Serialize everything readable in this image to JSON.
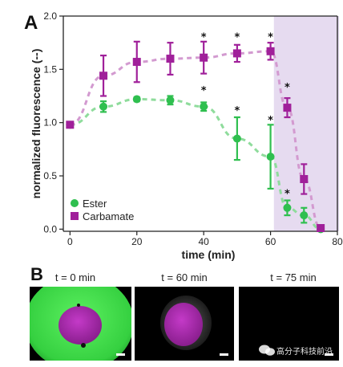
{
  "panel_a_label": "A",
  "panel_b_label": "B",
  "chart_data": {
    "type": "line",
    "xlabel": "time (min)",
    "ylabel": "normalized fluorescence (--)",
    "xlim": [
      -2,
      80
    ],
    "ylim": [
      -0.02,
      2.0
    ],
    "x_ticks": [
      0,
      20,
      40,
      60,
      80
    ],
    "y_ticks": [
      0.0,
      0.5,
      1.0,
      1.5,
      2.0
    ],
    "x_tick_labels": [
      "0",
      "20",
      "40",
      "60",
      "80"
    ],
    "y_tick_labels": [
      "0.0",
      "0.5",
      "1.0",
      "1.5",
      "2.0"
    ],
    "shaded_region": {
      "x_start": 61,
      "x_end": 80,
      "color": "#e6dbf0"
    },
    "legend_placement": "bottom-left",
    "grid": false,
    "series": [
      {
        "name": "Ester",
        "color": "#2fbf4f",
        "line_color": "#8fdc9c",
        "marker": "circle",
        "x": [
          0,
          10,
          20,
          30,
          40,
          50,
          60,
          65,
          70,
          75
        ],
        "y": [
          0.98,
          1.15,
          1.22,
          1.21,
          1.15,
          0.85,
          0.68,
          0.2,
          0.13,
          0.0
        ],
        "err": [
          0.0,
          0.05,
          0.02,
          0.04,
          0.04,
          0.2,
          0.3,
          0.07,
          0.07,
          0.0
        ]
      },
      {
        "name": "Carbamate",
        "color": "#a0209a",
        "line_color": "#d39ad0",
        "marker": "square",
        "x": [
          0,
          10,
          20,
          30,
          40,
          50,
          60,
          65,
          70,
          75
        ],
        "y": [
          0.98,
          1.44,
          1.57,
          1.6,
          1.61,
          1.65,
          1.67,
          1.14,
          0.47,
          0.01
        ],
        "err": [
          0.0,
          0.19,
          0.19,
          0.15,
          0.15,
          0.08,
          0.08,
          0.09,
          0.14,
          0.0
        ]
      }
    ],
    "annotations": [
      {
        "text": "*",
        "x": 40,
        "y": 1.77
      },
      {
        "text": "*",
        "x": 50,
        "y": 1.77
      },
      {
        "text": "*",
        "x": 60,
        "y": 1.77
      },
      {
        "text": "*",
        "x": 65,
        "y": 1.3
      },
      {
        "text": "*",
        "x": 40,
        "y": 1.27
      },
      {
        "text": "*",
        "x": 50,
        "y": 1.08
      },
      {
        "text": "*",
        "x": 60,
        "y": 0.99
      },
      {
        "text": "*",
        "x": 65,
        "y": 0.3
      }
    ]
  },
  "images": [
    {
      "title": "t = 0 min",
      "background": "#000000",
      "outer_color": "#3fd94a",
      "inner_color": "#a028a8"
    },
    {
      "title": "t = 60 min",
      "background": "#000000",
      "outer_color": "#3c3c3c",
      "inner_color": "#a028a8"
    },
    {
      "title": "t = 75 min",
      "background": "#000000",
      "outer_color": "#000000",
      "inner_color": "#000000"
    }
  ],
  "watermark": {
    "text": "高分子科技前沿",
    "icon": "wechat-icon"
  }
}
